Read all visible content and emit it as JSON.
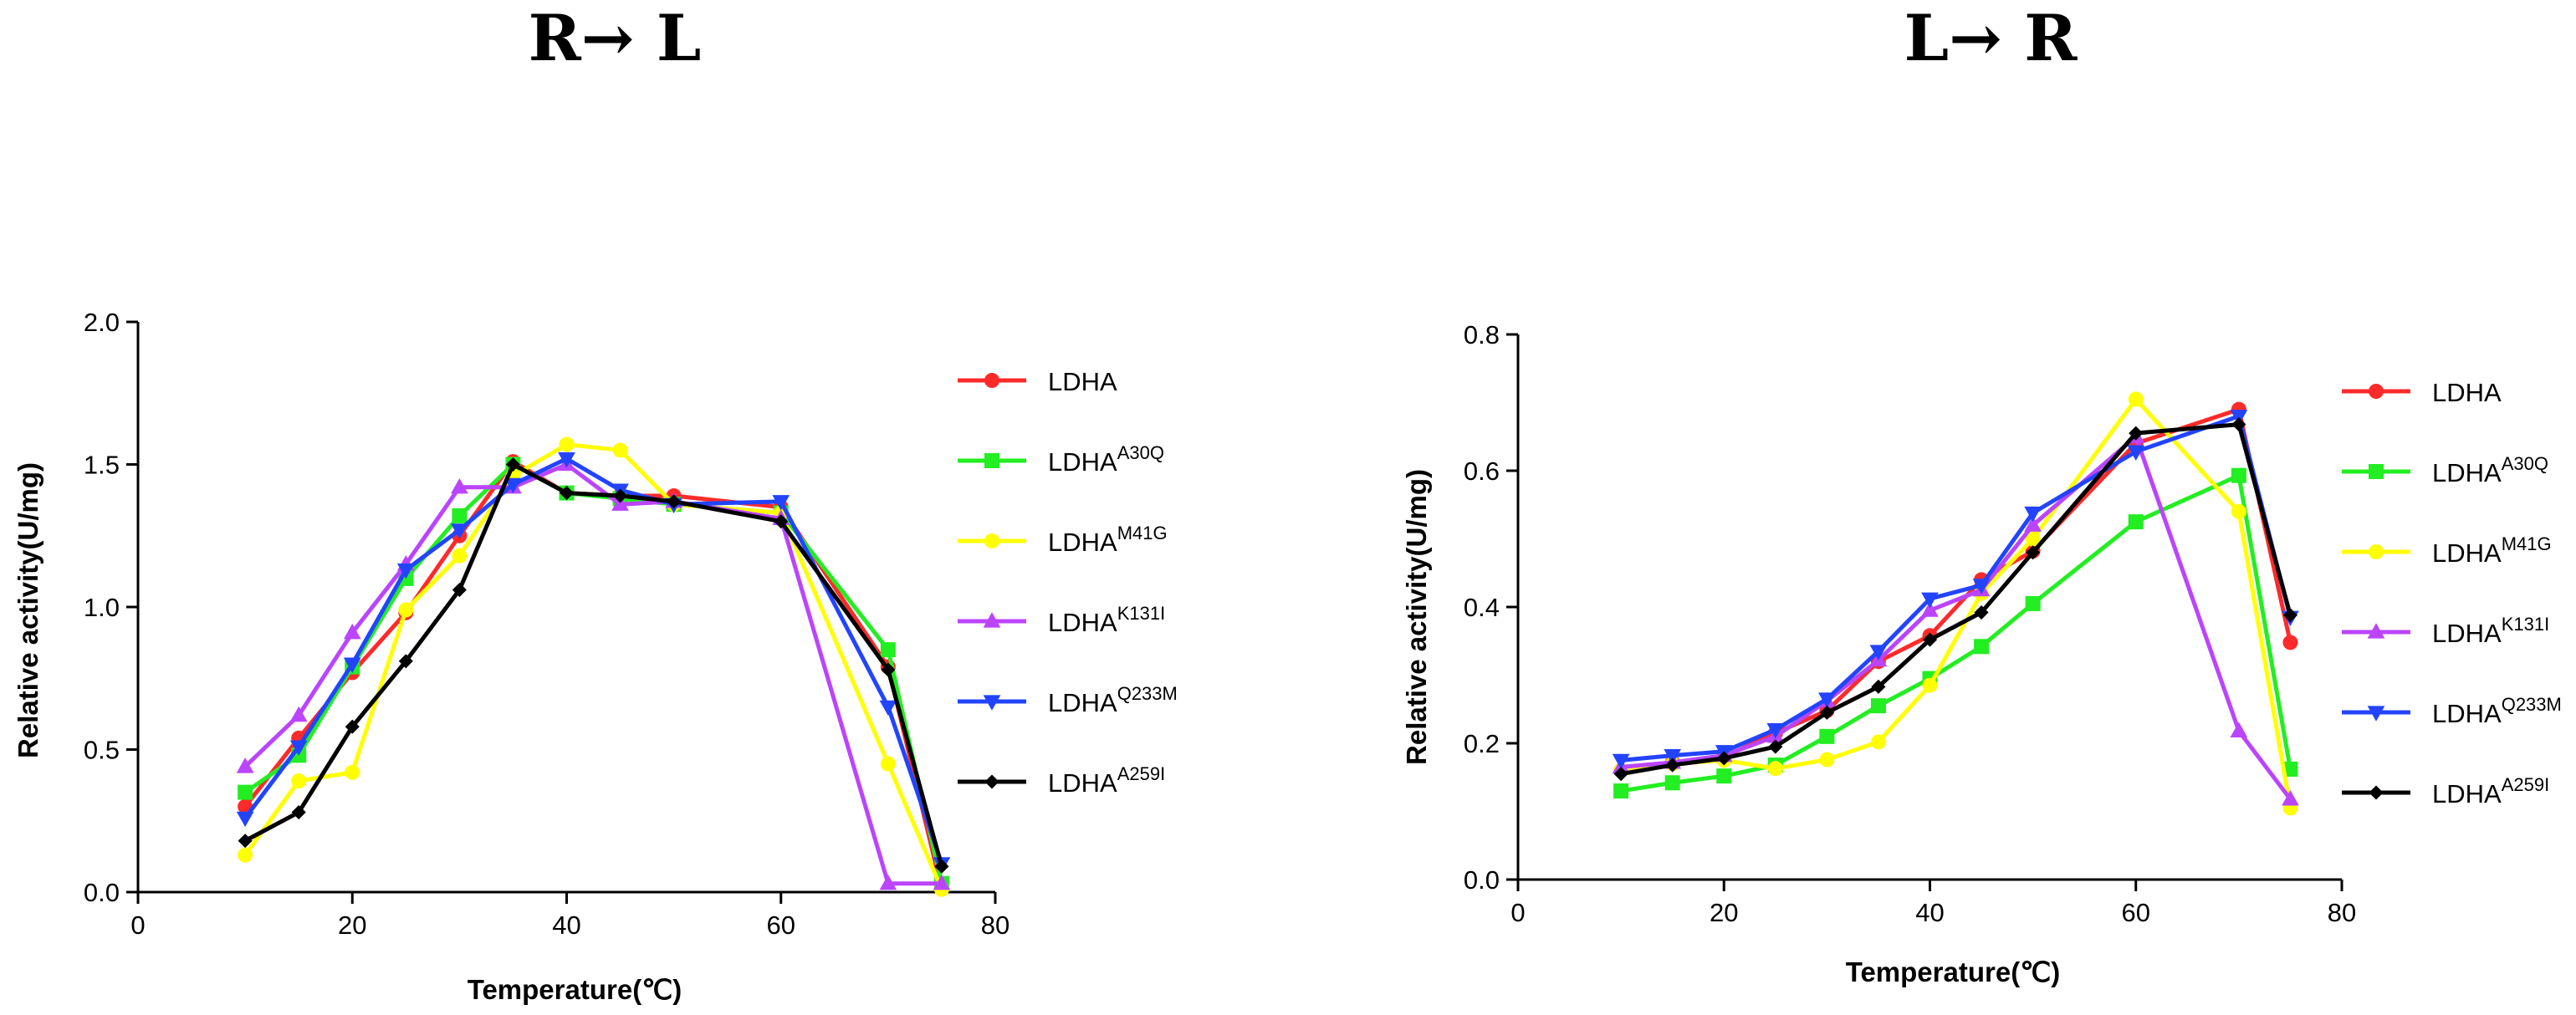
{
  "chart_data": [
    {
      "type": "line",
      "title": "R→ L",
      "xlabel": "Temperature(℃)",
      "ylabel": "Relative activity(U/mg)",
      "xlim": [
        0,
        80
      ],
      "ylim": [
        0,
        2.0
      ],
      "xticks": [
        "0",
        "20",
        "40",
        "60",
        "80"
      ],
      "yticks": [
        "0.0",
        "0.5",
        "1.0",
        "1.5",
        "2.0"
      ],
      "legend_position": "right",
      "x": [
        10,
        15,
        20,
        25,
        30,
        35,
        40,
        45,
        50,
        60,
        70,
        75
      ],
      "series": [
        {
          "name": "LDHA",
          "sup": "",
          "color": "#ff2a2a",
          "marker": "circle",
          "values": [
            0.3,
            0.54,
            0.77,
            0.98,
            1.25,
            1.51,
            1.4,
            1.39,
            1.39,
            1.35,
            0.79,
            0.01
          ]
        },
        {
          "name": "LDHA",
          "sup": "A30Q",
          "color": "#22ee22",
          "marker": "square",
          "values": [
            0.35,
            0.48,
            0.79,
            1.1,
            1.32,
            1.5,
            1.4,
            1.38,
            1.36,
            1.33,
            0.85,
            0.03
          ]
        },
        {
          "name": "LDHA",
          "sup": "M41G",
          "color": "#ffff00",
          "marker": "circle",
          "values": [
            0.13,
            0.39,
            0.42,
            0.99,
            1.18,
            1.46,
            1.57,
            1.55,
            1.36,
            1.33,
            0.45,
            0.01
          ]
        },
        {
          "name": "LDHA",
          "sup": "K131I",
          "color": "#bb44ff",
          "marker": "triangle-up",
          "values": [
            0.44,
            0.62,
            0.91,
            1.15,
            1.42,
            1.42,
            1.5,
            1.36,
            1.37,
            1.31,
            0.03,
            0.03
          ]
        },
        {
          "name": "LDHA",
          "sup": "Q233M",
          "color": "#2244ff",
          "marker": "triangle-down",
          "values": [
            0.26,
            0.51,
            0.8,
            1.13,
            1.27,
            1.43,
            1.52,
            1.41,
            1.36,
            1.37,
            0.65,
            0.1
          ]
        },
        {
          "name": "LDHA",
          "sup": "A259I",
          "color": "#000000",
          "marker": "diamond",
          "values": [
            0.18,
            0.28,
            0.58,
            0.81,
            1.06,
            1.5,
            1.4,
            1.39,
            1.37,
            1.3,
            0.78,
            0.09
          ]
        }
      ]
    },
    {
      "type": "line",
      "title": "L→ R",
      "xlabel": "Temperature(℃)",
      "ylabel": "Relative activity(U/mg)",
      "xlim": [
        0,
        80
      ],
      "ylim": [
        0,
        0.8
      ],
      "xticks": [
        "0",
        "20",
        "40",
        "60",
        "80"
      ],
      "yticks": [
        "0.0",
        "0.2",
        "0.4",
        "0.6",
        "0.8"
      ],
      "legend_position": "right",
      "x": [
        10,
        15,
        20,
        25,
        30,
        35,
        40,
        45,
        50,
        60,
        70,
        75
      ],
      "series": [
        {
          "name": "LDHA",
          "sup": "",
          "color": "#ff2a2a",
          "marker": "circle",
          "values": [
            0.16,
            0.172,
            0.18,
            0.215,
            0.248,
            0.32,
            0.358,
            0.44,
            0.482,
            0.64,
            0.69,
            0.348
          ]
        },
        {
          "name": "LDHA",
          "sup": "A30Q",
          "color": "#22ee22",
          "marker": "square",
          "values": [
            0.13,
            0.142,
            0.152,
            0.168,
            0.21,
            0.255,
            0.295,
            0.342,
            0.405,
            0.525,
            0.593,
            0.162
          ]
        },
        {
          "name": "LDHA",
          "sup": "M41G",
          "color": "#ffff00",
          "marker": "circle",
          "values": [
            0.16,
            0.17,
            0.175,
            0.163,
            0.176,
            0.202,
            0.285,
            0.42,
            0.5,
            0.705,
            0.54,
            0.105
          ]
        },
        {
          "name": "LDHA",
          "sup": "K131I",
          "color": "#bb44ff",
          "marker": "triangle-up",
          "values": [
            0.165,
            0.172,
            0.182,
            0.21,
            0.262,
            0.322,
            0.395,
            0.425,
            0.52,
            0.65,
            0.218,
            0.118
          ]
        },
        {
          "name": "LDHA",
          "sup": "Q233M",
          "color": "#2244ff",
          "marker": "triangle-down",
          "values": [
            0.175,
            0.182,
            0.188,
            0.22,
            0.265,
            0.335,
            0.412,
            0.432,
            0.538,
            0.628,
            0.68,
            0.385
          ]
        },
        {
          "name": "LDHA",
          "sup": "A259I",
          "color": "#000000",
          "marker": "diamond",
          "values": [
            0.155,
            0.168,
            0.178,
            0.195,
            0.245,
            0.283,
            0.352,
            0.392,
            0.48,
            0.655,
            0.668,
            0.388
          ]
        }
      ]
    }
  ]
}
